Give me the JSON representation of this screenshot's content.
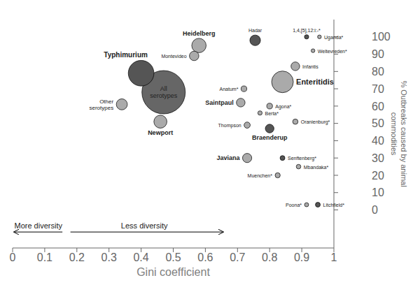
{
  "chart_data": {
    "type": "bubble",
    "xlabel": "Gini coefficient",
    "ylabel": "% Outbreaks caused by animal\ncommodities",
    "x": [
      0.47,
      0.4,
      0.84,
      0.46,
      0.34,
      0.58,
      0.755,
      0.565,
      0.88,
      0.71,
      0.8,
      0.73,
      0.72,
      0.8,
      0.77,
      0.73,
      0.88,
      0.84,
      0.89,
      0.825,
      0.915,
      0.95,
      0.915,
      0.955,
      0.935
    ],
    "values": [
      68,
      79,
      74,
      51,
      61,
      95,
      98,
      89,
      83,
      62,
      47,
      30,
      70,
      60,
      56,
      49,
      51,
      30,
      25,
      20,
      3,
      3,
      100,
      100,
      92
    ],
    "sizes": [
      2000,
      700,
      500,
      180,
      130,
      220,
      120,
      95,
      80,
      80,
      80,
      90,
      35,
      35,
      20,
      40,
      30,
      25,
      22,
      28,
      18,
      25,
      20,
      15,
      15
    ],
    "point_labels": [
      "All\nserotypes",
      "Typhimurium",
      "Enteritidis",
      "Newport",
      "Other\nserotypes",
      "Heidelberg",
      "Hadar",
      "Montevideo",
      "Infantis",
      "Saintpaul",
      "Braenderup",
      "Javiana",
      "Anatum*",
      "Agona*",
      "Berta*",
      "Thompson",
      "Oranienburg*",
      "Senftenberg*",
      "Mbandaka*",
      "Muenchen*",
      "Poona*",
      "Litchfield*",
      "1,4,[5],12:i:-*",
      "Uganda*",
      "Weltevreden*"
    ],
    "colors": [
      "#666666",
      "#555555",
      "#aaaaaa",
      "#aaaaaa",
      "#aaaaaa",
      "#aaaaaa",
      "#555555",
      "#aaaaaa",
      "#aaaaaa",
      "#aaaaaa",
      "#555555",
      "#aaaaaa",
      "#aaaaaa",
      "#aaaaaa",
      "#aaaaaa",
      "#aaaaaa",
      "#aaaaaa",
      "#555555",
      "#aaaaaa",
      "#aaaaaa",
      "#aaaaaa",
      "#555555",
      "#555555",
      "#aaaaaa",
      "#aaaaaa"
    ],
    "xlim": [
      0,
      1
    ],
    "ylim": [
      -22,
      110
    ],
    "xticks": [
      0,
      0.1,
      0.2,
      0.3,
      0.4,
      0.5,
      0.6,
      0.7,
      0.8,
      0.9,
      1
    ],
    "yticks": [
      0,
      10,
      20,
      30,
      40,
      50,
      60,
      70,
      80,
      90,
      100
    ],
    "grid": false,
    "annotations": [
      {
        "text": "More diversity",
        "arrow": "left"
      },
      {
        "text": "Less diversity",
        "arrow": "right"
      }
    ]
  }
}
